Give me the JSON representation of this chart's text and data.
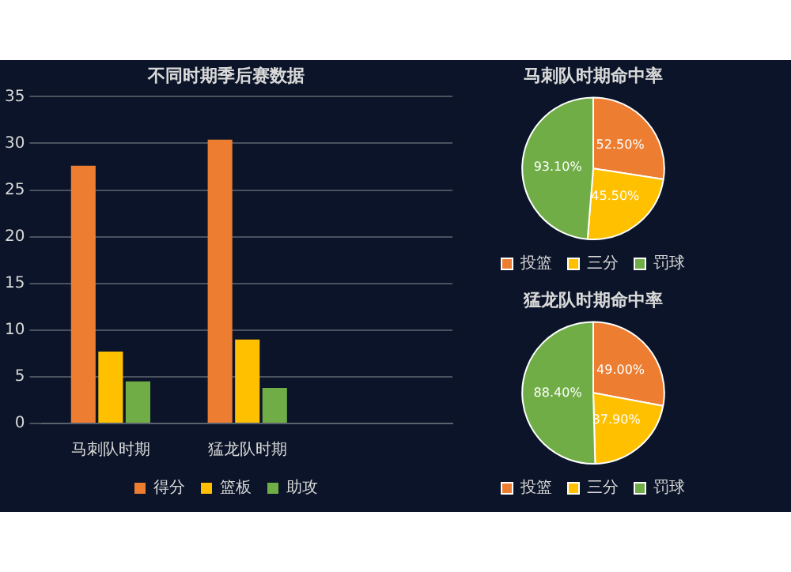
{
  "chart_data": [
    {
      "type": "bar",
      "title": "不同时期季后赛数据",
      "categories": [
        "马刺队时期",
        "猛龙队时期",
        null
      ],
      "series": [
        {
          "name": "得分",
          "color": "#ed7d31",
          "values": [
            27.6,
            30.4,
            null
          ]
        },
        {
          "name": "篮板",
          "color": "#ffc000",
          "values": [
            7.7,
            9.0,
            null
          ]
        },
        {
          "name": "助攻",
          "color": "#70ad47",
          "values": [
            4.5,
            3.8,
            null
          ]
        }
      ],
      "ylim": [
        0,
        35
      ],
      "yticks": [
        0,
        5,
        10,
        15,
        20,
        25,
        30,
        35
      ],
      "grid": "y",
      "legend": "bottom"
    },
    {
      "type": "pie",
      "title": "马刺队时期命中率",
      "categories": [
        "投篮",
        "三分",
        "罚球"
      ],
      "values": [
        52.5,
        45.5,
        93.1
      ],
      "value_labels": [
        "52.50%",
        "45.50%",
        "93.10%"
      ],
      "colors": [
        "#ed7d31",
        "#ffc000",
        "#70ad47"
      ],
      "legend": "bottom"
    },
    {
      "type": "pie",
      "title": "猛龙队时期命中率",
      "categories": [
        "投篮",
        "三分",
        "罚球"
      ],
      "values": [
        49.0,
        37.9,
        88.4
      ],
      "value_labels": [
        "49.00%",
        "37.90%",
        "88.40%"
      ],
      "colors": [
        "#ed7d31",
        "#ffc000",
        "#70ad47"
      ],
      "legend": "bottom"
    }
  ]
}
